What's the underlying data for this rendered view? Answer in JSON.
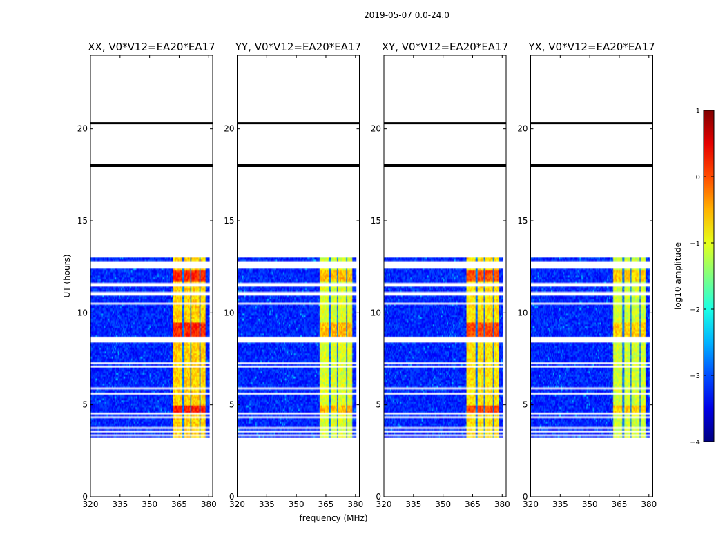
{
  "chart_data": {
    "type": "heatmap",
    "suptitle": "2019-05-07 0.0-24.0",
    "xlabel": "frequency (MHz)",
    "ylabel": "UT (hours)",
    "xlim": [
      320,
      382
    ],
    "ylim": [
      0,
      24
    ],
    "x_ticks": [
      "320",
      "335",
      "350",
      "365",
      "380"
    ],
    "y_ticks": [
      "0",
      "5",
      "10",
      "15",
      "20"
    ],
    "x_tick_values": [
      320,
      335,
      350,
      365,
      380
    ],
    "y_tick_values": [
      0,
      5,
      10,
      15,
      20
    ],
    "data_time_range_hours": [
      3.2,
      13.0
    ],
    "blank_rows_hours": [
      3.35,
      3.55,
      3.75,
      4.3,
      4.55,
      5.6,
      5.9,
      7.1,
      7.3,
      8.45,
      8.6,
      10.5,
      11.05,
      11.45,
      11.6,
      12.5,
      12.7
    ],
    "black_lines_hours": [
      20.3,
      18.0
    ],
    "vertical_band_mhz": [
      362,
      378.5
    ],
    "dark_stripes_mhz": [
      367,
      371,
      375.5
    ],
    "panels": [
      {
        "title": "XX, V0*V12=EA20*EA17",
        "band_strength": 0.95
      },
      {
        "title": "YY, V0*V12=EA20*EA17",
        "band_strength": 0.55
      },
      {
        "title": "XY, V0*V12=EA20*EA17",
        "band_strength": 0.85
      },
      {
        "title": "YX, V0*V12=EA20*EA17",
        "band_strength": 0.5
      }
    ],
    "colorbar": {
      "label": "log10 amplitude",
      "range": [
        -4,
        1
      ],
      "ticks": [
        "1",
        "0",
        "−1",
        "−2",
        "−3",
        "−4"
      ],
      "tick_values": [
        1,
        0,
        -1,
        -2,
        -3,
        -4
      ],
      "colormap": "jet"
    }
  }
}
